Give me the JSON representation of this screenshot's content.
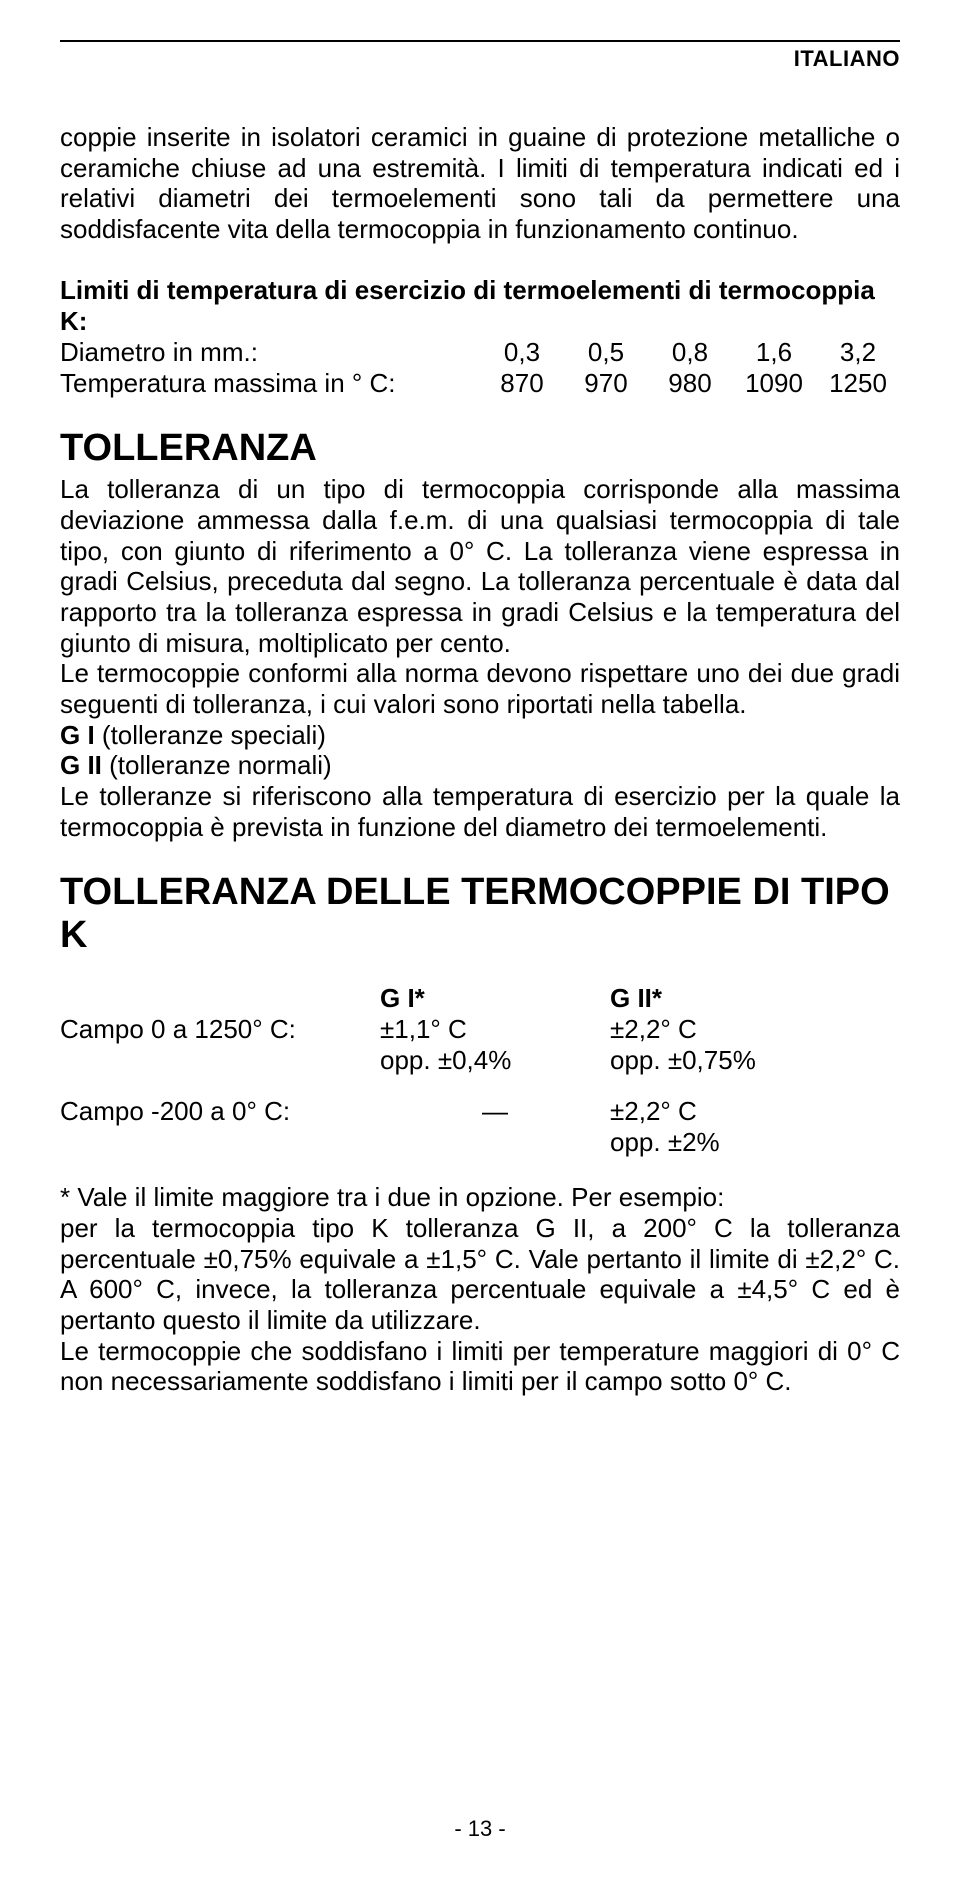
{
  "header": {
    "language": "ITALIANO"
  },
  "intro": {
    "p1": "coppie inserite in isolatori ceramici in guaine di protezione metalliche o ceramiche chiuse ad una estremità. I limiti di temperatura indicati ed i relativi diametri dei termoelementi sono tali da permettere una soddisfacente vita della termocoppia in funzionamento continuo."
  },
  "limits": {
    "title": "Limiti di temperatura di esercizio di termoelementi di termocoppia K:",
    "row_diam_label": "Diametro in mm.:",
    "row_temp_label": "Temperatura massima in ° C:",
    "diam": [
      "0,3",
      "0,5",
      "0,8",
      "1,6",
      "3,2"
    ],
    "temp": [
      "870",
      "970",
      "980",
      "1090",
      "1250"
    ]
  },
  "tolerance": {
    "title": "TOLLERANZA",
    "p1": "La tolleranza di un tipo di termocoppia corrisponde alla massima deviazione ammessa dalla f.e.m. di una qualsiasi termocoppia di tale tipo, con giunto di riferimento a 0° C. La tolleranza viene espressa in gradi Celsius, preceduta dal segno. La tolleranza percentuale è data dal rapporto tra la tolleranza espressa in gradi Celsius e la temperatura del giunto di misura, moltiplicato per cento.",
    "p2": "Le termocoppie conformi alla norma devono rispettare uno dei due gradi seguenti di tolleranza, i cui valori sono riportati nella tabella.",
    "g1_label": "G I",
    "g1_desc": "(tolleranze speciali)",
    "g2_label": "G II",
    "g2_desc": "(tolleranze normali)",
    "p3": "Le tolleranze si riferiscono alla temperatura di esercizio per la quale la termocoppia è prevista in funzione del diametro dei termoelementi."
  },
  "tolerance_k": {
    "title": "TOLLERANZA DELLE TERMOCOPPIE DI TIPO K",
    "header_g1": "G I*",
    "header_g2": "G II*",
    "row1_label": "Campo 0 a 1250° C:",
    "row1_g1_a": "±1,1° C",
    "row1_g1_b": "opp. ±0,4%",
    "row1_g2_a": "±2,2° C",
    "row1_g2_b": "opp. ±0,75%",
    "row2_label": "Campo -200 a 0° C:",
    "row2_g1_a": "—",
    "row2_g2_a": "±2,2° C",
    "row2_g2_b": "opp. ±2%"
  },
  "footnote": {
    "p1": "* Vale il limite maggiore tra i due in opzione. Per esempio:",
    "p2": "per la termocoppia tipo K tolleranza G II, a 200° C la tolleranza percentuale ±0,75% equivale a ±1,5° C. Vale pertanto il limite di ±2,2° C. A 600° C, invece, la tolleranza percentuale equivale a ±4,5° C ed è pertanto questo il limite da utilizzare.",
    "p3": "Le termocoppie che soddisfano i limiti per temperature maggiori di 0° C non necessariamente soddisfano i limiti per il campo sotto 0° C."
  },
  "page": {
    "number": "- 13 -"
  }
}
